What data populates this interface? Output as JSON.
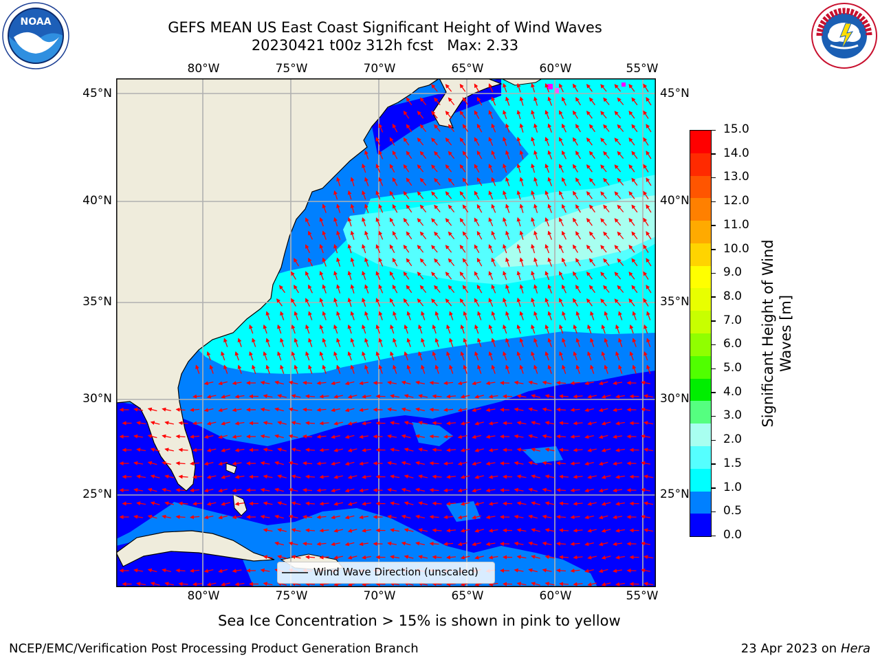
{
  "title": {
    "line1": "GEFS MEAN US East Coast Significant Height of Wind Waves",
    "line2": "20230421 t00z 312h fcst   Max: 2.33"
  },
  "logos": {
    "left": {
      "text": "NOAA",
      "ring": "NATIONAL OCEANIC AND ATMOSPHERIC ADMINISTRATION · U.S. DEPARTMENT OF COMMERCE"
    },
    "right": {
      "ring": "NATIONAL WEATHER SERVICE"
    }
  },
  "map": {
    "lon_ticks": [
      "80°W",
      "75°W",
      "70°W",
      "65°W",
      "60°W",
      "55°W"
    ],
    "lat_ticks": [
      "45°N",
      "40°N",
      "35°N",
      "30°N",
      "25°N"
    ],
    "legend": "Wind Wave Direction (unscaled)",
    "colors": {
      "land": "#efecdc",
      "grid": "#b0b0b0",
      "arrow": "#ff0000"
    }
  },
  "colorbar": {
    "label_line1": "Significant Height of Wind",
    "label_line2": "Waves [m]",
    "ticks": [
      "15.0",
      "14.0",
      "13.0",
      "12.0",
      "11.0",
      "10.0",
      "9.0",
      "8.0",
      "7.0",
      "6.0",
      "5.0",
      "4.0",
      "3.0",
      "2.0",
      "1.5",
      "1.0",
      "0.5",
      "0.0"
    ],
    "colors": [
      "#ff0000",
      "#ff2a00",
      "#ff5500",
      "#ff8000",
      "#ffaa00",
      "#ffd400",
      "#ffff00",
      "#e8ff00",
      "#c8ff00",
      "#90ff00",
      "#50ff00",
      "#00ee00",
      "#55ff80",
      "#a8fff0",
      "#55ffff",
      "#00ffff",
      "#0080ff",
      "#0000ff"
    ]
  },
  "note": "Sea Ice Concentration > 15% is shown in pink to yellow",
  "footer": {
    "left": "NCEP/EMC/Verification Post Processing Product Generation Branch",
    "right_date": "23 Apr 2023 on ",
    "right_host": "Hera"
  }
}
